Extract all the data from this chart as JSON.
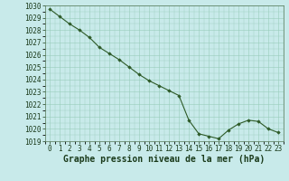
{
  "x": [
    0,
    1,
    2,
    3,
    4,
    5,
    6,
    7,
    8,
    9,
    10,
    11,
    12,
    13,
    14,
    15,
    16,
    17,
    18,
    19,
    20,
    21,
    22,
    23
  ],
  "y": [
    1029.7,
    1029.1,
    1028.5,
    1028.0,
    1027.4,
    1026.6,
    1026.1,
    1025.6,
    1025.0,
    1024.4,
    1023.9,
    1023.5,
    1023.1,
    1022.7,
    1020.7,
    1019.6,
    1019.4,
    1019.2,
    1019.9,
    1020.4,
    1020.7,
    1020.6,
    1020.0,
    1019.7
  ],
  "ylim": [
    1019,
    1030
  ],
  "yticks": [
    1019,
    1020,
    1021,
    1022,
    1023,
    1024,
    1025,
    1026,
    1027,
    1028,
    1029,
    1030
  ],
  "xlim": [
    -0.5,
    23.5
  ],
  "xticks": [
    0,
    1,
    2,
    3,
    4,
    5,
    6,
    7,
    8,
    9,
    10,
    11,
    12,
    13,
    14,
    15,
    16,
    17,
    18,
    19,
    20,
    21,
    22,
    23
  ],
  "line_color": "#2d5a27",
  "marker_color": "#2d5a27",
  "bg_color": "#c8eaea",
  "grid_color": "#99ccbb",
  "xlabel": "Graphe pression niveau de la mer (hPa)",
  "xlabel_fontsize": 7,
  "xlabel_color": "#1a3a1a",
  "tick_fontsize": 5.5,
  "tick_color": "#1a3a1a"
}
